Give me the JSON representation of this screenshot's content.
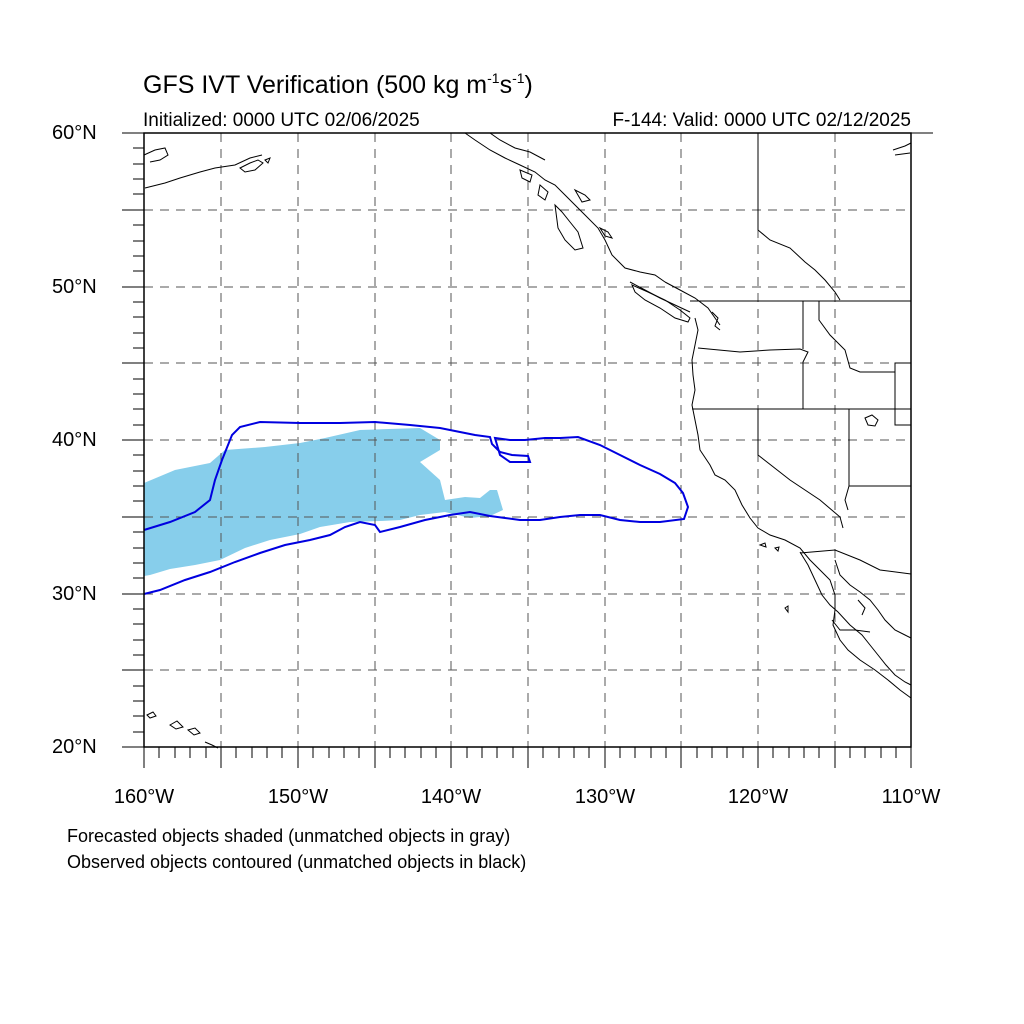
{
  "title": {
    "main": "GFS IVT Verification (500 kg m",
    "exp1": "-1",
    "mid": "s",
    "exp2": "-1",
    "end": ")"
  },
  "subtitle": {
    "initialized": "Initialized: 0000 UTC 02/06/2025",
    "valid": "F-144: Valid: 0000 UTC 02/12/2025"
  },
  "axes": {
    "lon_labels": [
      "160°W",
      "150°W",
      "140°W",
      "130°W",
      "120°W",
      "110°W"
    ],
    "lat_labels": [
      "60°N",
      "50°N",
      "40°N",
      "30°N",
      "20°N"
    ],
    "lon_range": [
      -160,
      -110
    ],
    "lat_range": [
      20,
      60
    ],
    "grid_step_deg": 5,
    "grid": true
  },
  "legend": {
    "line1": "Forecasted objects shaded (unmatched objects in gray)",
    "line2": "Observed objects contoured (unmatched objects in black)"
  },
  "colors": {
    "forecast_fill": "#87ceeb",
    "observed_contour": "#0000e0",
    "coastline": "#000000",
    "grid": "#555555"
  }
}
